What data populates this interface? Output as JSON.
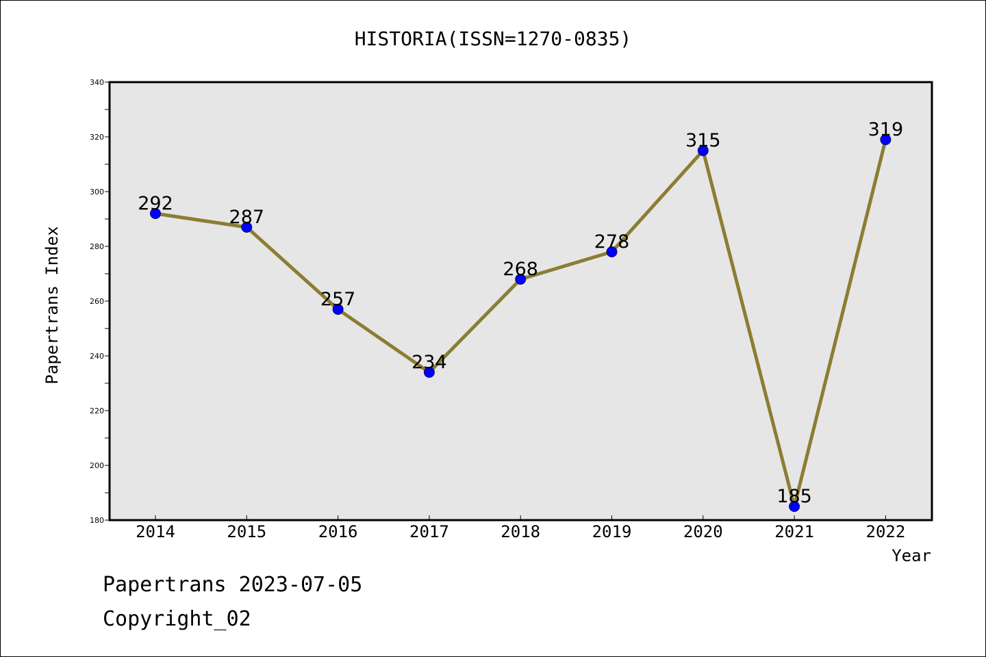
{
  "chart_data": {
    "type": "line",
    "title": "HISTORIA(ISSN=1270-0835)",
    "xlabel": "Year",
    "ylabel": "Papertrans Index",
    "categories": [
      "2014",
      "2015",
      "2016",
      "2017",
      "2018",
      "2019",
      "2020",
      "2021",
      "2022"
    ],
    "series": [
      {
        "name": "Papertrans Index",
        "values": [
          292,
          287,
          257,
          234,
          268,
          278,
          315,
          185,
          319
        ]
      }
    ],
    "data_labels": [
      "292",
      "287",
      "257",
      "234",
      "268",
      "278",
      "315",
      "185",
      "319"
    ],
    "ylim": [
      180,
      340
    ],
    "y_major_ticks": [
      180,
      200,
      220,
      240,
      260,
      280,
      300,
      320,
      340
    ],
    "y_tick_labels": [
      "180",
      "200",
      "220",
      "240",
      "260",
      "280",
      "300",
      "320",
      "340"
    ],
    "grid": false,
    "legend": "none"
  },
  "footer": {
    "line1": "Papertrans 2023-07-05",
    "line2": "Copyright_02"
  },
  "colors": {
    "background": "#ffffff",
    "plot_background": "#e6e6e6",
    "line": "#8b7d33",
    "marker_fill": "#0000ff",
    "marker_edge": "#0a0a6a",
    "text": "#000000"
  }
}
